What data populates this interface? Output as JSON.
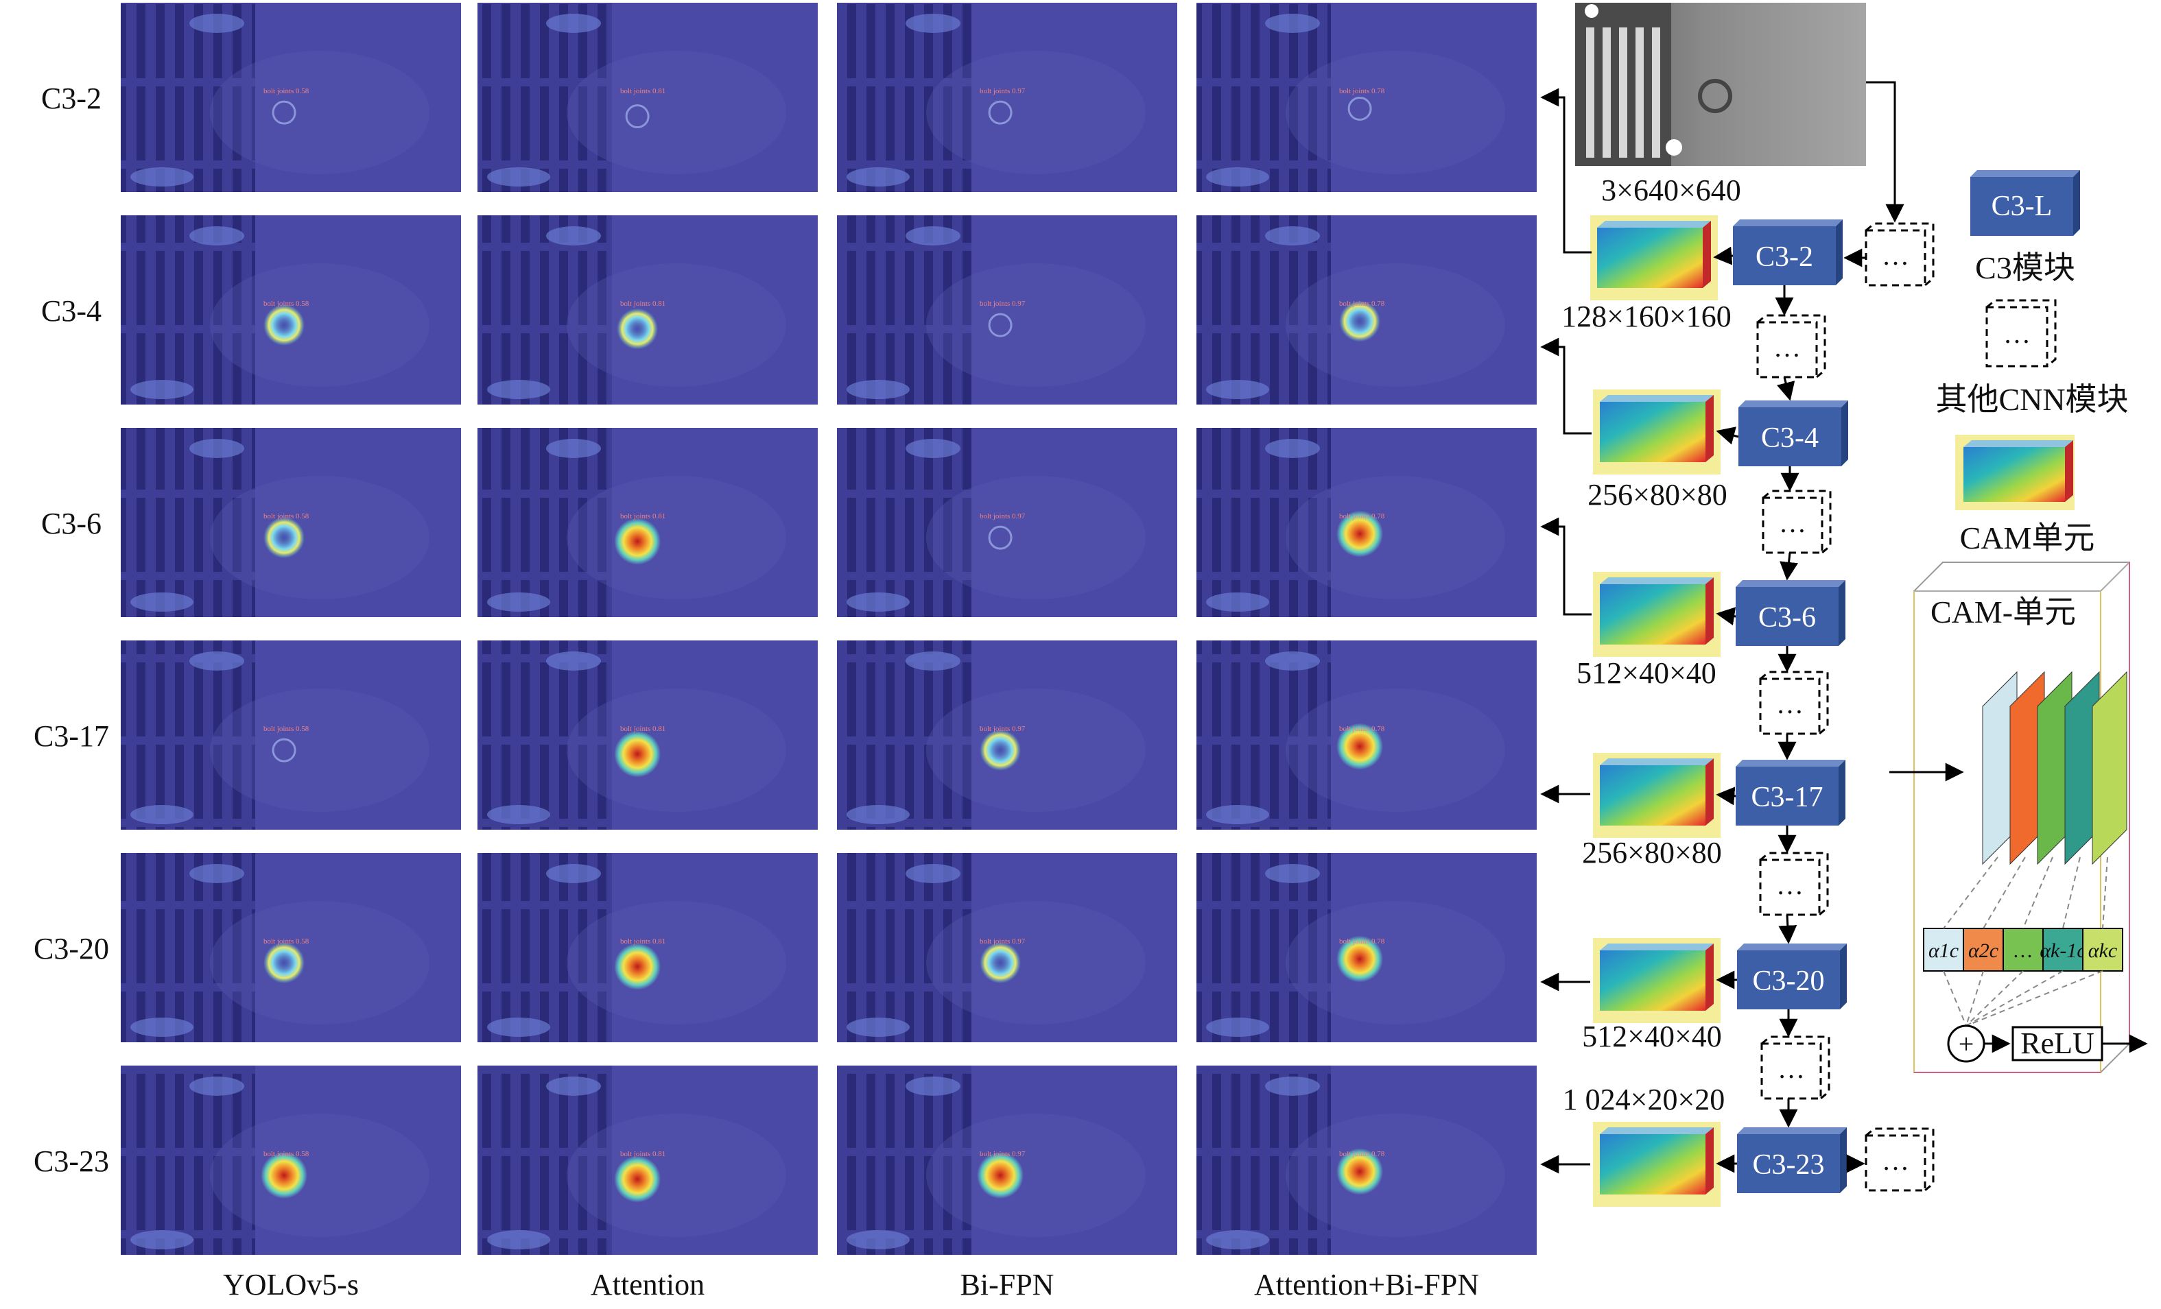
{
  "row_labels": [
    "C3-2",
    "C3-4",
    "C3-6",
    "C3-17",
    "C3-20",
    "C3-23"
  ],
  "column_labels": [
    "YOLOv5-s",
    "Attention",
    "Bi-FPN",
    "Attention+Bi-FPN"
  ],
  "detection_label": "bolt joints",
  "detection_scores": [
    "0.58",
    "0.81",
    "0.97",
    "0.78"
  ],
  "input_image": {
    "dims": "3×640×640"
  },
  "pipeline": [
    {
      "module": "C3-2",
      "dims": "128×160×160"
    },
    {
      "module": "C3-4",
      "dims": "256×80×80"
    },
    {
      "module": "C3-6",
      "dims": "512×40×40"
    },
    {
      "module": "C3-17",
      "dims": "256×80×80"
    },
    {
      "module": "C3-20",
      "dims": "512×40×40"
    },
    {
      "module": "C3-23",
      "dims": "1 024×20×20"
    }
  ],
  "other_symbol": "…",
  "legend": {
    "c3_box": "C3-L",
    "c3_text": "C3模块",
    "other_text": "其他CNN模块",
    "cam_text": "CAM单元"
  },
  "cam_detail": {
    "title": "CAM-单元",
    "weights": [
      "α1c",
      "α2c",
      "…",
      "αk-1c",
      "αkc"
    ],
    "plus_symbol": "+",
    "relu": "ReLU"
  },
  "colors": {
    "module_fill": "#3d5fa8",
    "module_top": "#6f8cc8",
    "module_side": "#26447f",
    "feature_glow": "#f4ee9a",
    "cam_sheet_colors": [
      "#cfe6ef",
      "#ef6a2c",
      "#6ab84a",
      "#2f9a8a",
      "#b8d85a"
    ],
    "weight_cells": [
      "#d6ecf2",
      "#f08a4a",
      "#78c252",
      "#3aa892",
      "#c8e06a"
    ],
    "heatmap_bg": "#4a4aa6"
  }
}
